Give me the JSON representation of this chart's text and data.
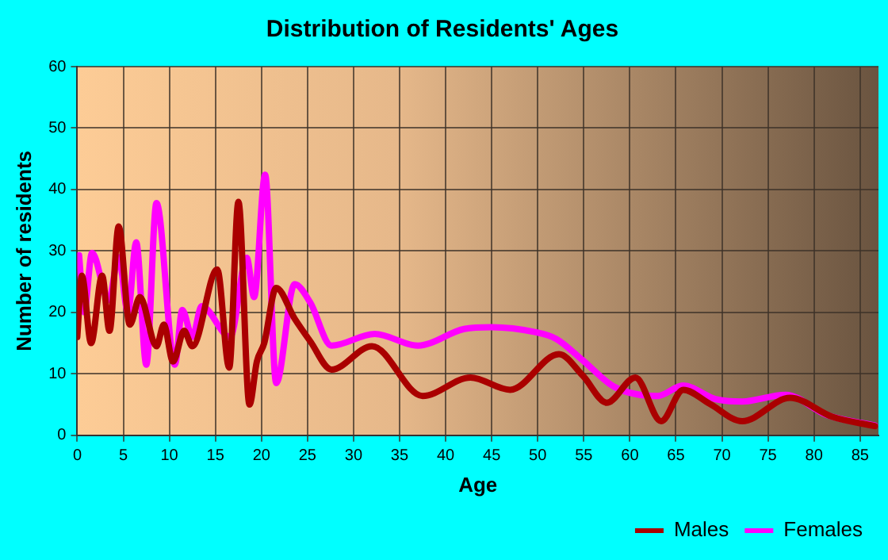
{
  "chart_data": {
    "type": "line",
    "title": "Distribution of Residents' Ages",
    "xlabel": "Age",
    "ylabel": "Number of residents",
    "xlim": [
      0,
      87
    ],
    "xticks": [
      0,
      5,
      10,
      15,
      20,
      25,
      30,
      35,
      40,
      45,
      50,
      55,
      60,
      65,
      70,
      75,
      80,
      85
    ],
    "ylim": [
      0,
      60
    ],
    "yticks": [
      0,
      10,
      20,
      30,
      40,
      50,
      60
    ],
    "grid": true,
    "legend": "bottom right",
    "marker": "none",
    "line_style": "solid",
    "series": [
      {
        "name": "Males",
        "color": "#aa0000",
        "x": [
          0,
          0.5,
          1.5,
          2.7,
          3.5,
          4.5,
          5.7,
          6.8,
          8.6,
          9.4,
          10.4,
          11.6,
          12.5,
          15.2,
          16.5,
          17.5,
          18.7,
          19.5,
          20.3,
          21.6,
          23.6,
          25.3,
          27.6,
          32,
          37.5,
          42.7,
          47,
          52.3,
          54.9,
          57.5,
          60.6,
          63.4,
          65.8,
          68.7,
          72.2,
          77.4,
          82,
          86.6
        ],
        "values": [
          16,
          26,
          15,
          26,
          17,
          34,
          18,
          22.5,
          14.5,
          18,
          12,
          17,
          14.5,
          27,
          11,
          38,
          5,
          12,
          15,
          24,
          19,
          15.3,
          10.7,
          14.5,
          6.4,
          9.4,
          7.4,
          13.2,
          9.7,
          5.3,
          9.4,
          2.3,
          7.4,
          5.1,
          2.3,
          6.1,
          3,
          1.5
        ]
      },
      {
        "name": "Females",
        "color": "#ff00ff",
        "x": [
          0.2,
          0.75,
          1.6,
          3.4,
          4.5,
          5.5,
          6.4,
          7.5,
          8.6,
          10.6,
          11.4,
          12.5,
          13.5,
          16.6,
          18.4,
          19.2,
          20.4,
          21.6,
          23.6,
          25.3,
          27.6,
          32.3,
          37,
          42,
          45,
          49.7,
          52,
          54.9,
          58.3,
          63,
          65.8,
          69.3,
          72.2,
          76.9,
          81.4,
          86.6
        ],
        "values": [
          29.3,
          20,
          29.7,
          22,
          29,
          20,
          31.4,
          11.5,
          37.8,
          11.5,
          20.4,
          16,
          21,
          16,
          28.9,
          22.5,
          42.4,
          8.5,
          24.6,
          21.6,
          14.6,
          16.5,
          14.6,
          17.3,
          17.6,
          16.8,
          15.7,
          12.2,
          7.9,
          6.4,
          8.1,
          5.9,
          5.5,
          6.6,
          3.3,
          1.6
        ]
      }
    ]
  }
}
